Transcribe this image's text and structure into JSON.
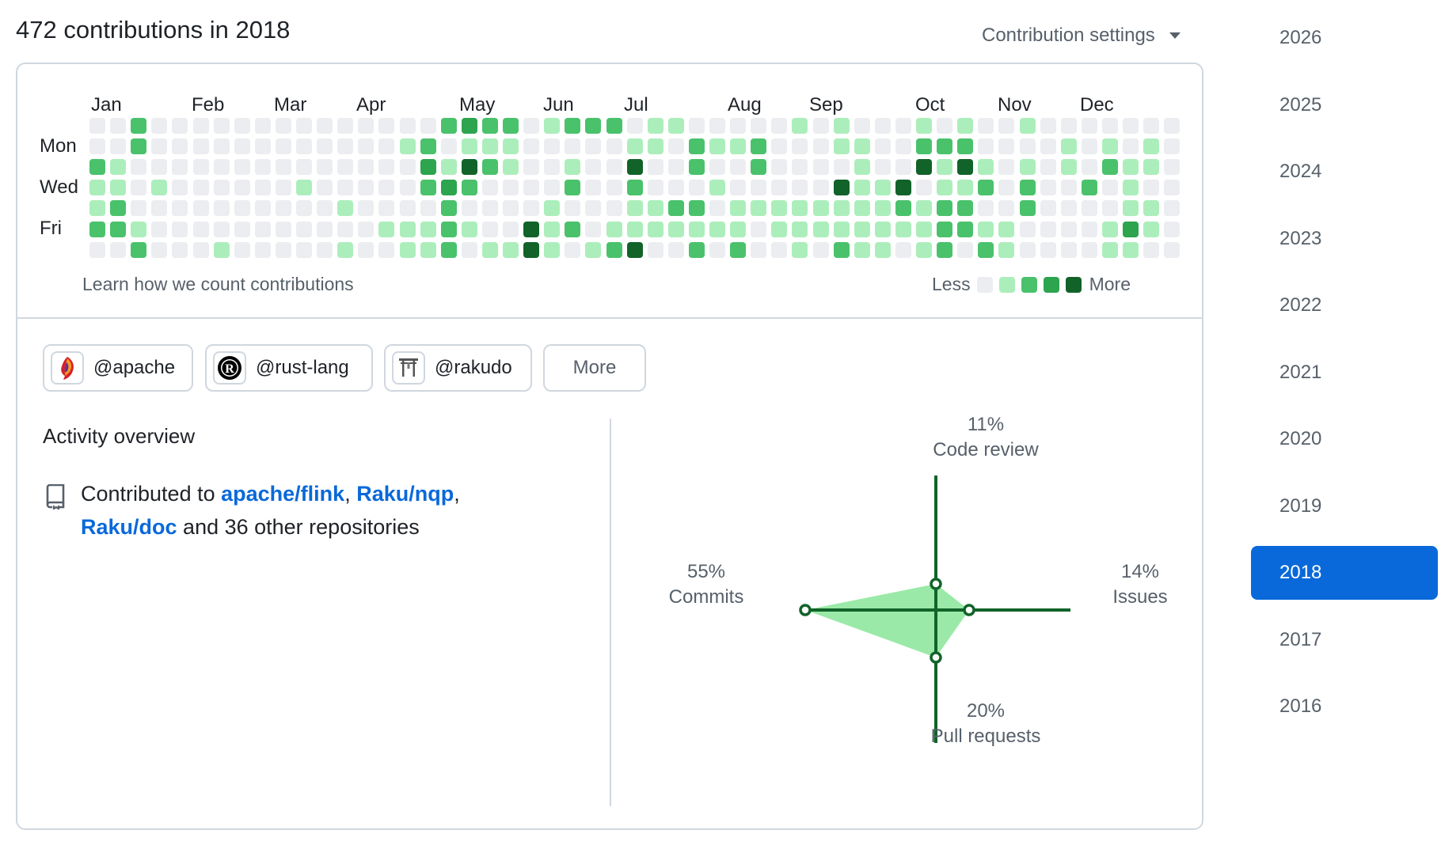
{
  "header": {
    "title": "472 contributions in 2018",
    "settings_label": "Contribution settings"
  },
  "calendar": {
    "months": [
      "Jan",
      "Feb",
      "Mar",
      "Apr",
      "May",
      "Jun",
      "Jul",
      "Aug",
      "Sep",
      "Oct",
      "Nov",
      "Dec"
    ],
    "day_labels": [
      "Mon",
      "Wed",
      "Fri"
    ],
    "learn_link": "Learn how we count contributions",
    "legend_less": "Less",
    "legend_more": "More",
    "level_colors": [
      "#ebedf0",
      "#aceebb",
      "#4ac26b",
      "#2da44e",
      "#116329"
    ],
    "weeks": [
      [
        0,
        0,
        2,
        1,
        1,
        2,
        0
      ],
      [
        0,
        0,
        1,
        1,
        2,
        2,
        0
      ],
      [
        2,
        2,
        0,
        0,
        0,
        1,
        2
      ],
      [
        0,
        0,
        0,
        1,
        0,
        0,
        0
      ],
      [
        0,
        0,
        0,
        0,
        0,
        0,
        0
      ],
      [
        0,
        0,
        0,
        0,
        0,
        0,
        0
      ],
      [
        0,
        0,
        0,
        0,
        0,
        0,
        1
      ],
      [
        0,
        0,
        0,
        0,
        0,
        0,
        0
      ],
      [
        0,
        0,
        0,
        0,
        0,
        0,
        0
      ],
      [
        0,
        0,
        0,
        0,
        0,
        0,
        0
      ],
      [
        0,
        0,
        0,
        1,
        0,
        0,
        0
      ],
      [
        0,
        0,
        0,
        0,
        0,
        0,
        0
      ],
      [
        0,
        0,
        0,
        0,
        1,
        0,
        1
      ],
      [
        0,
        0,
        0,
        0,
        0,
        0,
        0
      ],
      [
        0,
        0,
        0,
        0,
        0,
        1,
        0
      ],
      [
        0,
        1,
        0,
        0,
        0,
        1,
        1
      ],
      [
        0,
        2,
        3,
        2,
        0,
        1,
        1
      ],
      [
        2,
        0,
        1,
        3,
        2,
        2,
        2
      ],
      [
        3,
        1,
        4,
        2,
        0,
        1,
        0
      ],
      [
        2,
        1,
        2,
        0,
        0,
        0,
        1
      ],
      [
        2,
        1,
        1,
        0,
        0,
        0,
        1
      ],
      [
        0,
        0,
        0,
        0,
        0,
        4,
        4
      ],
      [
        1,
        0,
        0,
        0,
        1,
        1,
        1
      ],
      [
        2,
        0,
        1,
        2,
        0,
        2,
        0
      ],
      [
        2,
        0,
        0,
        0,
        0,
        0,
        1
      ],
      [
        2,
        0,
        0,
        0,
        0,
        1,
        2
      ],
      [
        0,
        1,
        4,
        2,
        1,
        1,
        4
      ],
      [
        1,
        1,
        0,
        0,
        1,
        1,
        0
      ],
      [
        1,
        0,
        0,
        0,
        2,
        1,
        0
      ],
      [
        0,
        2,
        2,
        0,
        2,
        1,
        2
      ],
      [
        0,
        1,
        0,
        1,
        0,
        1,
        0
      ],
      [
        0,
        1,
        0,
        0,
        1,
        1,
        2
      ],
      [
        0,
        2,
        2,
        0,
        1,
        0,
        0
      ],
      [
        0,
        0,
        0,
        0,
        1,
        1,
        0
      ],
      [
        1,
        0,
        0,
        0,
        1,
        1,
        1
      ],
      [
        0,
        0,
        0,
        0,
        1,
        1,
        0
      ],
      [
        1,
        1,
        0,
        4,
        1,
        1,
        2
      ],
      [
        0,
        1,
        1,
        1,
        1,
        1,
        1
      ],
      [
        0,
        0,
        0,
        1,
        1,
        1,
        1
      ],
      [
        0,
        0,
        0,
        4,
        2,
        1,
        0
      ],
      [
        1,
        2,
        4,
        0,
        1,
        1,
        1
      ],
      [
        0,
        2,
        1,
        1,
        2,
        2,
        2
      ],
      [
        1,
        2,
        4,
        1,
        2,
        2,
        0
      ],
      [
        0,
        0,
        1,
        2,
        0,
        1,
        2
      ],
      [
        0,
        0,
        0,
        0,
        0,
        1,
        1
      ],
      [
        1,
        0,
        1,
        2,
        2,
        0,
        0
      ],
      [
        0,
        0,
        0,
        0,
        0,
        0,
        0
      ],
      [
        0,
        1,
        1,
        0,
        0,
        0,
        0
      ],
      [
        0,
        0,
        0,
        2,
        0,
        0,
        0
      ],
      [
        0,
        1,
        2,
        0,
        0,
        1,
        1
      ],
      [
        0,
        0,
        1,
        1,
        1,
        3,
        1
      ],
      [
        0,
        1,
        1,
        0,
        1,
        1,
        0
      ],
      [
        0,
        0,
        0,
        0,
        0,
        0,
        0
      ]
    ]
  },
  "orgs": [
    {
      "handle": "@apache",
      "logo_icon": "apache-feather-icon"
    },
    {
      "handle": "@rust-lang",
      "logo_icon": "rust-gear-icon"
    },
    {
      "handle": "@rakudo",
      "logo_icon": "rakudo-gate-icon"
    }
  ],
  "orgs_more_label": "More",
  "overview": {
    "title": "Activity overview",
    "prefix": "Contributed to",
    "repos": [
      "apache/flink",
      "Raku/nqp",
      "Raku/doc"
    ],
    "sep1": ",",
    "sep2": ",",
    "suffix": "and 36 other repositories",
    "icon": "repo-icon"
  },
  "chart_data": {
    "type": "radar",
    "axes": [
      {
        "name": "Code review",
        "percent_label": "11%",
        "value": 11
      },
      {
        "name": "Issues",
        "percent_label": "14%",
        "value": 14
      },
      {
        "name": "Pull requests",
        "percent_label": "20%",
        "value": 20
      },
      {
        "name": "Commits",
        "percent_label": "55%",
        "value": 55
      }
    ],
    "line_color": "#116329",
    "fill_color": "#9be9a8"
  },
  "years": [
    "2026",
    "2025",
    "2024",
    "2023",
    "2022",
    "2021",
    "2020",
    "2019",
    "2018",
    "2017",
    "2016"
  ],
  "selected_year": "2018"
}
